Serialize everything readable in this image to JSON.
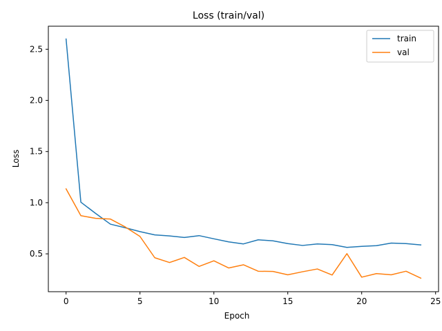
{
  "chart_data": {
    "type": "line",
    "title": "Loss (train/val)",
    "xlabel": "Epoch",
    "ylabel": "Loss",
    "xlim": [
      -1.2,
      25.2
    ],
    "ylim": [
      0.13,
      2.725
    ],
    "xticks": [
      0,
      5,
      10,
      15,
      20,
      25
    ],
    "yticks": [
      0.5,
      1.0,
      1.5,
      2.0,
      2.5
    ],
    "xtick_labels": [
      "0",
      "5",
      "10",
      "15",
      "20",
      "25"
    ],
    "ytick_labels": [
      "0.5",
      "1.0",
      "1.5",
      "2.0",
      "2.5"
    ],
    "grid": false,
    "legend_position": "top-right",
    "x": [
      0,
      1,
      2,
      3,
      4,
      5,
      6,
      7,
      8,
      9,
      10,
      11,
      12,
      13,
      14,
      15,
      16,
      17,
      18,
      19,
      20,
      21,
      22,
      23,
      24
    ],
    "series": [
      {
        "name": "train",
        "color": "#1f77b4",
        "values": [
          2.6,
          1.005,
          0.895,
          0.79,
          0.755,
          0.717,
          0.685,
          0.675,
          0.66,
          0.678,
          0.647,
          0.617,
          0.597,
          0.637,
          0.627,
          0.6,
          0.582,
          0.597,
          0.59,
          0.563,
          0.573,
          0.58,
          0.605,
          0.6,
          0.587
        ]
      },
      {
        "name": "val",
        "color": "#ff7f0e",
        "values": [
          1.135,
          0.873,
          0.847,
          0.84,
          0.763,
          0.67,
          0.462,
          0.415,
          0.465,
          0.377,
          0.432,
          0.362,
          0.393,
          0.33,
          0.328,
          0.295,
          0.325,
          0.352,
          0.293,
          0.502,
          0.272,
          0.307,
          0.295,
          0.33,
          0.262
        ]
      }
    ]
  }
}
